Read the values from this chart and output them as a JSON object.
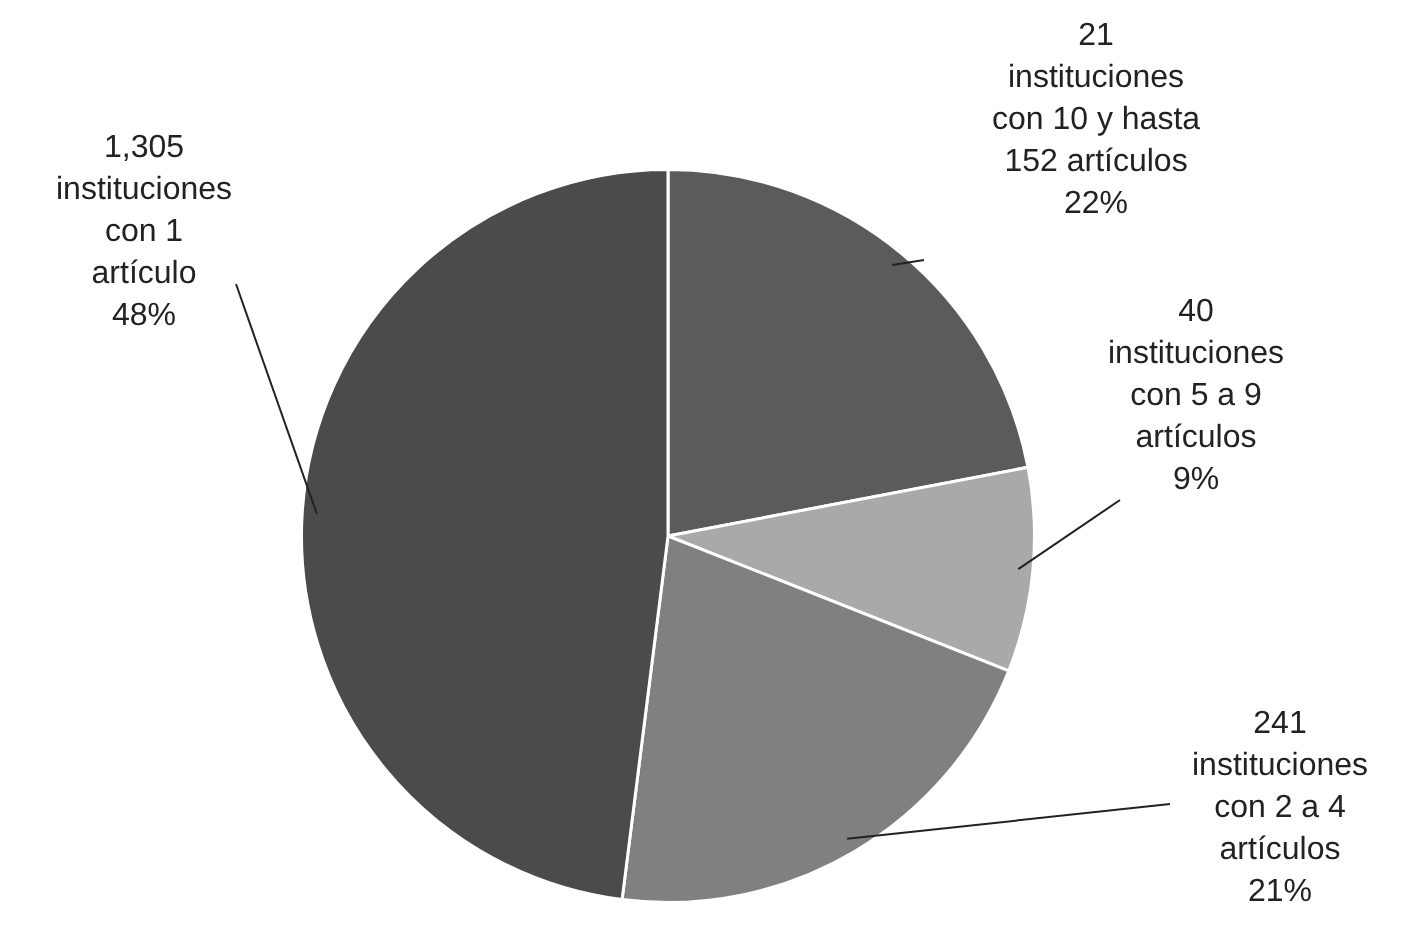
{
  "chart_data": {
    "type": "pie",
    "categories": [
      "21 instituciones con 10 y hasta 152 artículos",
      "40 instituciones con 5 a 9 artículos",
      "241 instituciones con 2 a 4 artículos",
      "1,305 instituciones con 1 artículo"
    ],
    "values": [
      22,
      9,
      21,
      48
    ],
    "value_labels": [
      "22%",
      "9%",
      "21%",
      "48%"
    ],
    "colors": [
      "#5b5b5b",
      "#a9a9a9",
      "#808080",
      "#4b4b4b"
    ],
    "legend": false
  }
}
